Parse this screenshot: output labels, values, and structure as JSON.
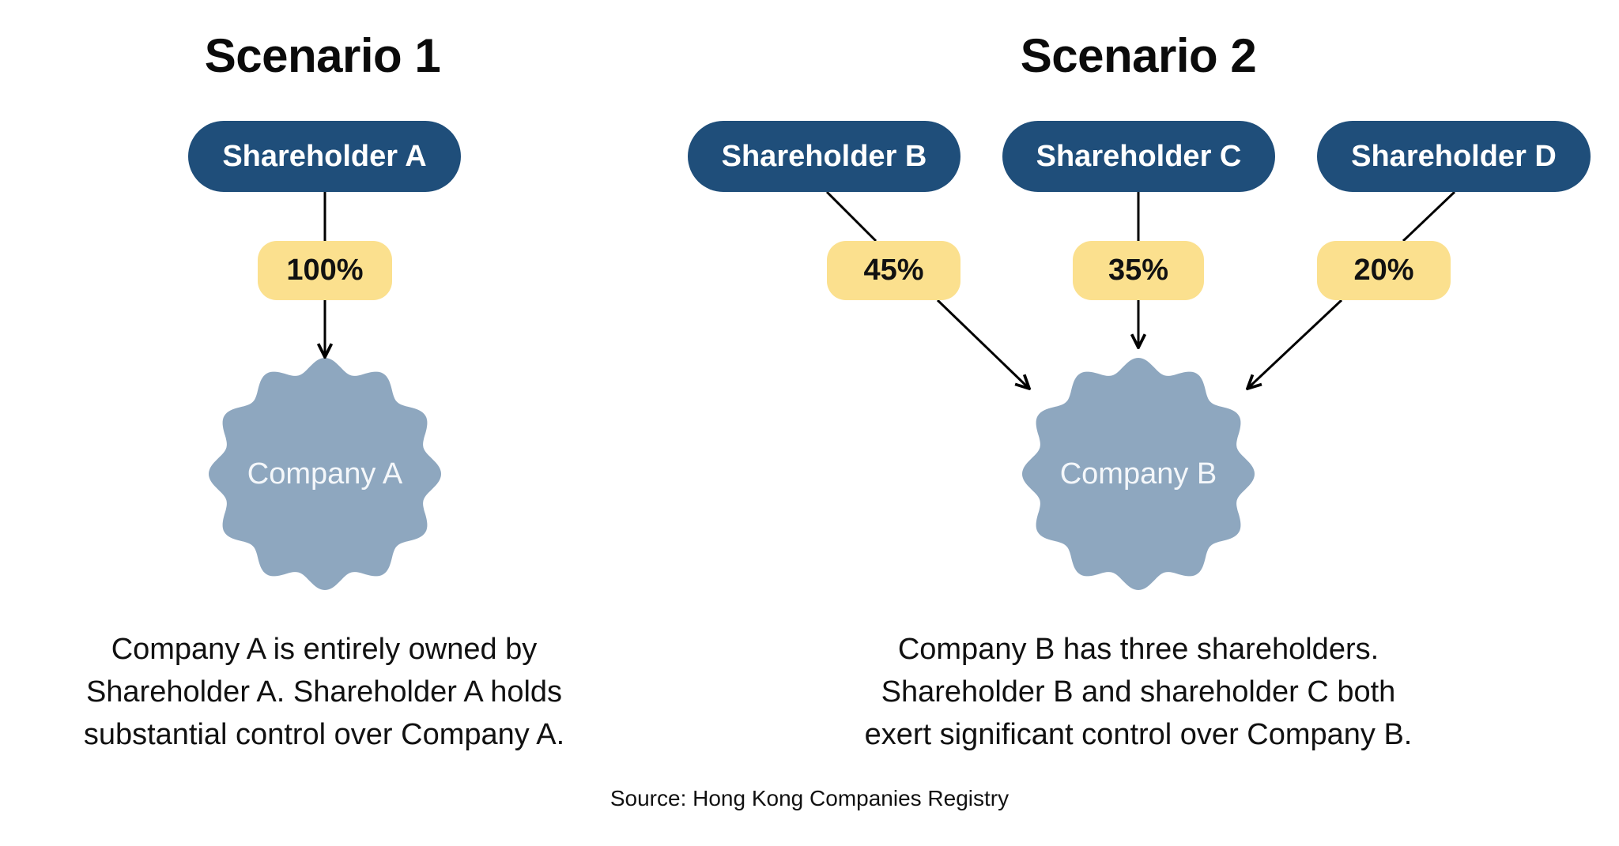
{
  "colors": {
    "shareholder_fill": "#1f4e7a",
    "percentage_fill": "#fbe08e",
    "company_fill": "#8ea7bf",
    "text": "#111111"
  },
  "scenario1": {
    "title": "Scenario 1",
    "shareholders": [
      {
        "label": "Shareholder A",
        "percentage": "100%"
      }
    ],
    "company": "Company A",
    "description": [
      "Company A is entirely owned by",
      "Shareholder A. Shareholder A holds",
      "substantial control over Company A."
    ]
  },
  "scenario2": {
    "title": "Scenario 2",
    "shareholders": [
      {
        "label": "Shareholder B",
        "percentage": "45%"
      },
      {
        "label": "Shareholder C",
        "percentage": "35%"
      },
      {
        "label": "Shareholder D",
        "percentage": "20%"
      }
    ],
    "company": "Company B",
    "description": [
      "Company B has three shareholders.",
      "Shareholder B and shareholder C both",
      "exert significant control over Company B."
    ]
  },
  "source": "Source: Hong Kong Companies Registry"
}
